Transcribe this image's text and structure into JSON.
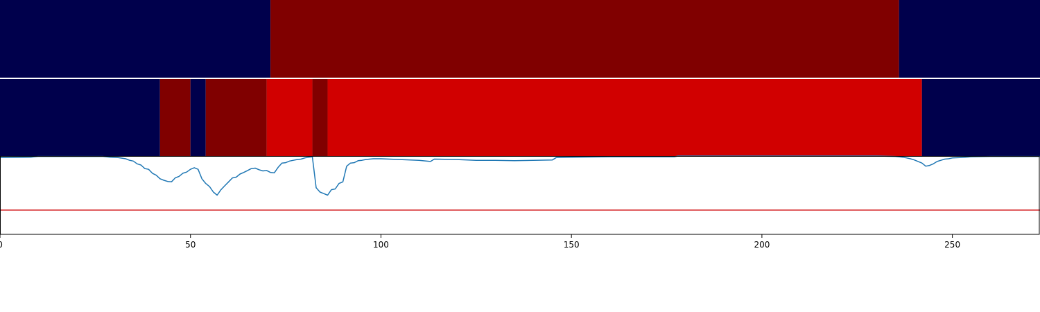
{
  "chart_data": {
    "type": "heatmap",
    "xlim": [
      0,
      273
    ],
    "x_ticks": [
      "0",
      "50",
      "100",
      "150",
      "200",
      "250"
    ],
    "x_tick_values": [
      0,
      50,
      100,
      150,
      200,
      250
    ],
    "colors": {
      "dark_blue": "#00004c",
      "dark_red": "#800000",
      "red": "#d10000",
      "line": "#1f77b4",
      "threshold": "#d62728",
      "axis": "#000000"
    },
    "top_band": [
      {
        "start": 0,
        "end": 71,
        "color": "dark_blue"
      },
      {
        "start": 71,
        "end": 236,
        "color": "dark_red"
      },
      {
        "start": 236,
        "end": 273,
        "color": "dark_blue"
      }
    ],
    "middle_band": [
      {
        "start": 0,
        "end": 42,
        "color": "dark_blue"
      },
      {
        "start": 42,
        "end": 50,
        "color": "dark_red"
      },
      {
        "start": 50,
        "end": 54,
        "color": "dark_blue"
      },
      {
        "start": 54,
        "end": 70,
        "color": "dark_red"
      },
      {
        "start": 70,
        "end": 82,
        "color": "red"
      },
      {
        "start": 82,
        "end": 86,
        "color": "dark_red"
      },
      {
        "start": 86,
        "end": 242,
        "color": "red"
      },
      {
        "start": 242,
        "end": 273,
        "color": "dark_blue"
      }
    ],
    "line_panel": {
      "ylim": [
        0,
        1
      ],
      "threshold": 0.31,
      "series": {
        "x": [
          0,
          8,
          9,
          10,
          15,
          18,
          22,
          25,
          27,
          29,
          31,
          33,
          34,
          35,
          36,
          37,
          38,
          39,
          40,
          41,
          42,
          43,
          44,
          45,
          46,
          47,
          48,
          49,
          50,
          51,
          52,
          53,
          54,
          55,
          56,
          57,
          58,
          59,
          60,
          61,
          62,
          63,
          64,
          65,
          66,
          67,
          68,
          69,
          70,
          71,
          72,
          73,
          74,
          75,
          76,
          77,
          78,
          79,
          80,
          81,
          82,
          83,
          84,
          85,
          86,
          87,
          88,
          89,
          90,
          91,
          92,
          93,
          94,
          95,
          96,
          97,
          98,
          99,
          100,
          105,
          110,
          113,
          114,
          120,
          125,
          130,
          135,
          140,
          145,
          146,
          150,
          160,
          177,
          178,
          200,
          210,
          230,
          235,
          237,
          238,
          239,
          240,
          241,
          242,
          243,
          244,
          245,
          246,
          247,
          248,
          249,
          250,
          252,
          255,
          260,
          265,
          270,
          273
        ],
        "y": [
          0.98,
          0.985,
          0.99,
          0.995,
          0.995,
          0.995,
          0.995,
          0.995,
          0.995,
          0.985,
          0.98,
          0.965,
          0.945,
          0.935,
          0.9,
          0.885,
          0.84,
          0.83,
          0.78,
          0.755,
          0.71,
          0.69,
          0.675,
          0.67,
          0.72,
          0.74,
          0.78,
          0.795,
          0.83,
          0.85,
          0.83,
          0.71,
          0.65,
          0.61,
          0.54,
          0.5,
          0.57,
          0.62,
          0.67,
          0.72,
          0.73,
          0.77,
          0.79,
          0.815,
          0.84,
          0.845,
          0.825,
          0.81,
          0.815,
          0.79,
          0.785,
          0.855,
          0.91,
          0.915,
          0.935,
          0.945,
          0.955,
          0.96,
          0.975,
          0.985,
          0.99,
          0.595,
          0.54,
          0.52,
          0.5,
          0.57,
          0.58,
          0.65,
          0.67,
          0.87,
          0.91,
          0.915,
          0.94,
          0.945,
          0.955,
          0.96,
          0.965,
          0.965,
          0.965,
          0.955,
          0.945,
          0.93,
          0.96,
          0.955,
          0.945,
          0.945,
          0.94,
          0.945,
          0.95,
          0.98,
          0.985,
          0.99,
          0.99,
          1.0,
          1.0,
          1.0,
          1.0,
          0.995,
          0.985,
          0.975,
          0.965,
          0.95,
          0.93,
          0.91,
          0.87,
          0.88,
          0.9,
          0.93,
          0.945,
          0.96,
          0.965,
          0.975,
          0.98,
          0.99,
          0.995,
          0.995,
          0.995,
          0.995
        ]
      }
    }
  }
}
